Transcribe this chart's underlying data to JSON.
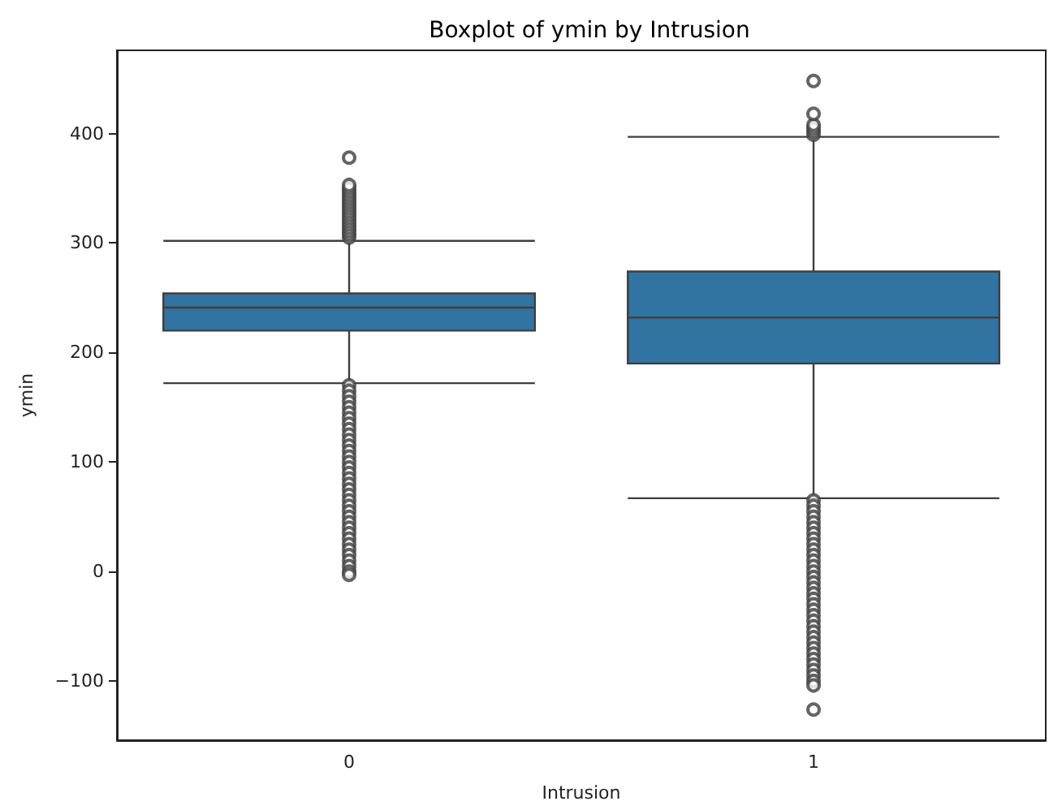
{
  "chart_data": {
    "type": "box",
    "title": "Boxplot of ymin by Intrusion",
    "xlabel": "Intrusion",
    "ylabel": "ymin",
    "categories": [
      "0",
      "1"
    ],
    "color": "#3274a1",
    "boxes": [
      {
        "low": 172,
        "q1": 220,
        "median": 241,
        "q3": 254,
        "high": 302,
        "outliers": [
          305,
          308,
          311,
          314,
          317,
          320,
          323,
          326,
          329,
          332,
          335,
          338,
          341,
          344,
          347,
          350,
          353,
          378,
          170,
          165,
          160,
          155,
          150,
          145,
          140,
          135,
          130,
          125,
          120,
          115,
          110,
          105,
          100,
          95,
          90,
          85,
          80,
          75,
          70,
          65,
          60,
          55,
          50,
          45,
          40,
          35,
          30,
          25,
          20,
          15,
          10,
          5,
          0,
          -3
        ]
      },
      {
        "low": 67,
        "q1": 190,
        "median": 232,
        "q3": 274,
        "high": 397,
        "outliers": [
          399,
          402,
          405,
          408,
          418,
          448,
          65,
          60,
          55,
          50,
          45,
          40,
          35,
          30,
          25,
          20,
          15,
          10,
          5,
          0,
          -5,
          -10,
          -15,
          -20,
          -25,
          -30,
          -35,
          -40,
          -45,
          -50,
          -55,
          -60,
          -65,
          -70,
          -75,
          -80,
          -85,
          -90,
          -95,
          -100,
          -104,
          -126
        ]
      }
    ],
    "ylim": [
      -154,
      476
    ],
    "yticks": [
      -100,
      0,
      100,
      200,
      300,
      400
    ],
    "grid": false
  }
}
